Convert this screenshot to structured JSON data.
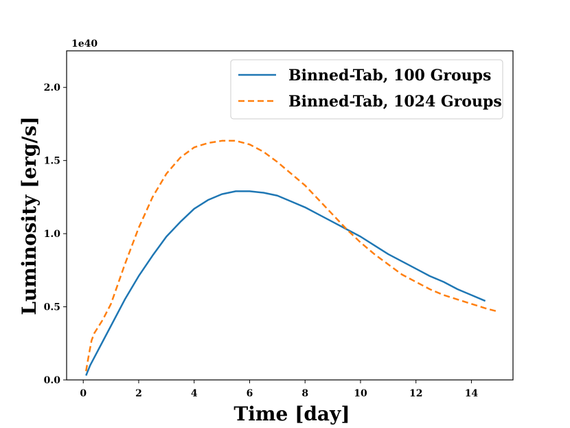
{
  "chart_data": {
    "type": "line",
    "title": "",
    "xlabel": "Time [day]",
    "ylabel": "Luminosity [erg/s]",
    "y_offset_label": "1e40",
    "xlim": [
      -0.6,
      15.5
    ],
    "ylim": [
      0,
      2.25
    ],
    "xticks": [
      0,
      2,
      4,
      6,
      8,
      10,
      12,
      14
    ],
    "xtick_labels": [
      "0",
      "2",
      "4",
      "6",
      "8",
      "10",
      "12",
      "14"
    ],
    "yticks": [
      0.0,
      0.5,
      1.0,
      1.5,
      2.0
    ],
    "ytick_labels": [
      "0.0",
      "0.5",
      "1.0",
      "1.5",
      "2.0"
    ],
    "grid": false,
    "legend_position": "top-right",
    "series": [
      {
        "name": "Binned-Tab, 100 Groups",
        "color": "#1f77b4",
        "style": "solid",
        "x": [
          0.1,
          0.25,
          0.5,
          0.75,
          1.0,
          1.5,
          2.0,
          2.5,
          3.0,
          3.5,
          4.0,
          4.5,
          5.0,
          5.5,
          6.0,
          6.5,
          7.0,
          7.5,
          8.0,
          8.5,
          9.0,
          9.5,
          10.0,
          10.5,
          11.0,
          11.5,
          12.0,
          12.5,
          13.0,
          13.5,
          14.0,
          14.5
        ],
        "y": [
          0.03,
          0.1,
          0.19,
          0.28,
          0.37,
          0.55,
          0.71,
          0.85,
          0.98,
          1.08,
          1.17,
          1.23,
          1.27,
          1.29,
          1.29,
          1.28,
          1.26,
          1.22,
          1.18,
          1.13,
          1.08,
          1.03,
          0.98,
          0.92,
          0.86,
          0.81,
          0.76,
          0.71,
          0.67,
          0.62,
          0.58,
          0.54
        ]
      },
      {
        "name": "Binned-Tab, 1024 Groups",
        "color": "#ff7f0e",
        "style": "dashed",
        "x": [
          0.1,
          0.2,
          0.3,
          0.4,
          0.5,
          0.7,
          1.0,
          1.5,
          2.0,
          2.5,
          3.0,
          3.5,
          4.0,
          4.5,
          5.0,
          5.5,
          6.0,
          6.5,
          7.0,
          7.5,
          8.0,
          8.5,
          9.0,
          9.5,
          10.0,
          10.5,
          11.0,
          11.5,
          12.0,
          12.5,
          13.0,
          13.5,
          14.0,
          14.5,
          14.9
        ],
        "y": [
          0.06,
          0.17,
          0.27,
          0.32,
          0.35,
          0.41,
          0.52,
          0.79,
          1.04,
          1.25,
          1.41,
          1.52,
          1.59,
          1.62,
          1.635,
          1.635,
          1.61,
          1.56,
          1.49,
          1.41,
          1.33,
          1.23,
          1.13,
          1.03,
          0.94,
          0.86,
          0.79,
          0.72,
          0.67,
          0.62,
          0.58,
          0.55,
          0.52,
          0.49,
          0.47
        ]
      }
    ]
  }
}
